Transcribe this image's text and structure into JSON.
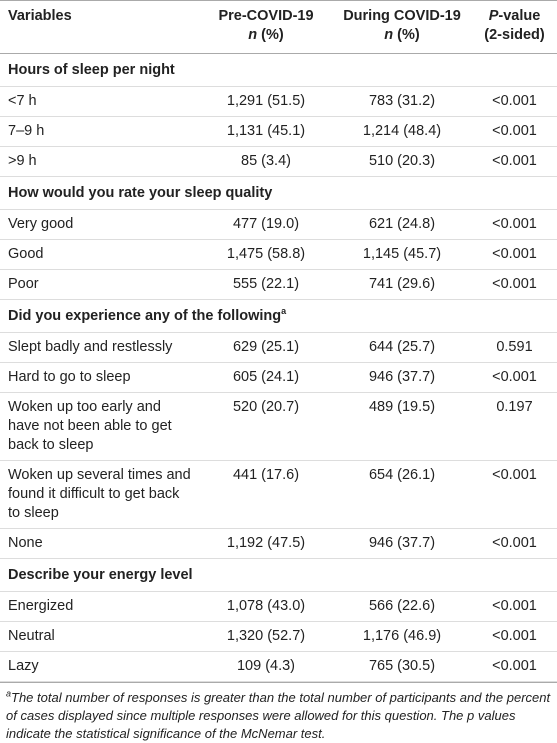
{
  "table": {
    "columns": [
      {
        "title": "Variables"
      },
      {
        "title": "Pre-COVID-19",
        "sub_italic": "n",
        "sub": " (%)"
      },
      {
        "title": "During COVID-19",
        "sub_italic": "n",
        "sub": " (%)"
      },
      {
        "title_italic": "P",
        "title": "-value",
        "sub": "(2-sided)"
      }
    ],
    "sections": [
      {
        "heading": "Hours of sleep per night",
        "rows": [
          [
            "<7 h",
            "1,291 (51.5)",
            "783 (31.2)",
            "<0.001"
          ],
          [
            "7–9 h",
            "1,131 (45.1)",
            "1,214 (48.4)",
            "<0.001"
          ],
          [
            ">9 h",
            "85 (3.4)",
            "510 (20.3)",
            "<0.001"
          ]
        ]
      },
      {
        "heading": "How would you rate your sleep quality",
        "rows": [
          [
            "Very good",
            "477 (19.0)",
            "621 (24.8)",
            "<0.001"
          ],
          [
            "Good",
            "1,475 (58.8)",
            "1,145 (45.7)",
            "<0.001"
          ],
          [
            "Poor",
            "555 (22.1)",
            "741 (29.6)",
            "<0.001"
          ]
        ]
      },
      {
        "heading": "Did you experience any of the following",
        "heading_sup": "a",
        "rows": [
          [
            "Slept badly and restlessly",
            "629 (25.1)",
            "644 (25.7)",
            "0.591"
          ],
          [
            "Hard to go to sleep",
            "605 (24.1)",
            "946 (37.7)",
            "<0.001"
          ],
          [
            "Woken up too early and have not been able to get back to sleep",
            "520 (20.7)",
            "489 (19.5)",
            "0.197"
          ],
          [
            "Woken up several times and found it difficult to get back to sleep",
            "441 (17.6)",
            "654 (26.1)",
            "<0.001"
          ],
          [
            "None",
            "1,192 (47.5)",
            "946 (37.7)",
            "<0.001"
          ]
        ]
      },
      {
        "heading": "Describe your energy level",
        "rows": [
          [
            "Energized",
            "1,078 (43.0)",
            "566 (22.6)",
            "<0.001"
          ],
          [
            "Neutral",
            "1,320 (52.7)",
            "1,176 (46.9)",
            "<0.001"
          ],
          [
            "Lazy",
            "109 (4.3)",
            "765 (30.5)",
            "<0.001"
          ]
        ]
      }
    ],
    "footnote": {
      "sup": "a",
      "text": "The total number of responses is greater than the total number of participants and the percent of cases displayed since multiple responses were allowed for this question. The p values indicate the statistical significance of the McNemar test."
    }
  }
}
